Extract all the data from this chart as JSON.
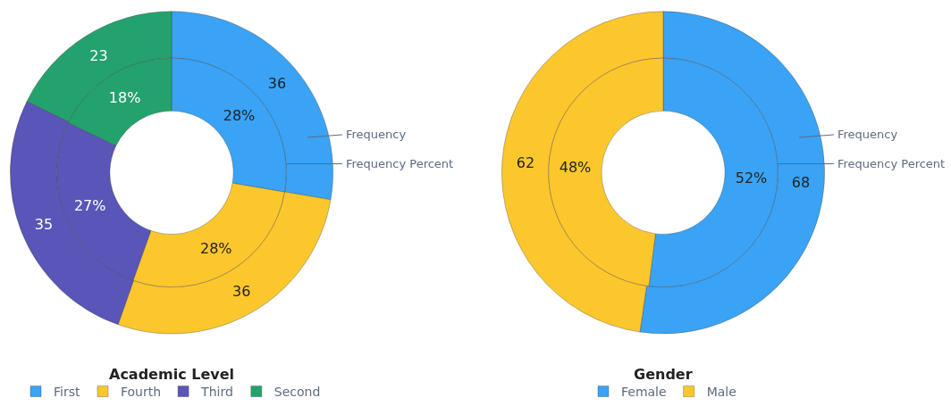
{
  "chart_data": [
    {
      "type": "donut",
      "title": "Academic Level",
      "categories": [
        "First",
        "Fourth",
        "Third",
        "Second"
      ],
      "colors": [
        "#3aa3f5",
        "#fcc72d",
        "#5a55b8",
        "#23a26d"
      ],
      "legend": "bottom",
      "series": [
        {
          "name": "Frequency",
          "values": [
            36,
            36,
            35,
            23
          ],
          "value_labels": [
            "36",
            "36",
            "35",
            "23"
          ]
        },
        {
          "name": "Frequency Percent",
          "values": [
            28,
            28,
            27,
            18
          ],
          "value_labels": [
            "28%",
            "28%",
            "27%",
            "18%"
          ]
        }
      ]
    },
    {
      "type": "donut",
      "title": "Gender",
      "categories": [
        "Female",
        "Male"
      ],
      "colors": [
        "#3aa3f5",
        "#fcc72d"
      ],
      "legend": "bottom",
      "series": [
        {
          "name": "Frequency",
          "values": [
            68,
            62
          ],
          "value_labels": [
            "68",
            "62"
          ]
        },
        {
          "name": "Frequency Percent",
          "values": [
            52,
            48
          ],
          "value_labels": [
            "52%",
            "48%"
          ]
        }
      ]
    }
  ]
}
